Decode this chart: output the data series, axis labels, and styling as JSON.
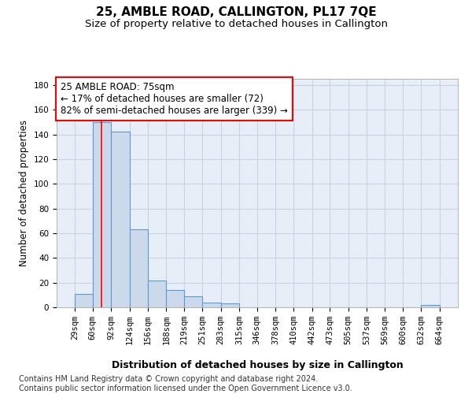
{
  "title": "25, AMBLE ROAD, CALLINGTON, PL17 7QE",
  "subtitle": "Size of property relative to detached houses in Callington",
  "xlabel": "Distribution of detached houses by size in Callington",
  "ylabel": "Number of detached properties",
  "bin_edges": [
    29,
    60,
    92,
    124,
    156,
    188,
    219,
    251,
    283,
    315,
    346,
    378,
    410,
    442,
    473,
    505,
    537,
    569,
    600,
    632,
    664
  ],
  "bar_heights": [
    11,
    150,
    142,
    63,
    22,
    14,
    9,
    4,
    3,
    0,
    0,
    0,
    0,
    0,
    0,
    0,
    0,
    0,
    0,
    2
  ],
  "bar_color": "#ccd9ea",
  "bar_edge_color": "#5b9bd5",
  "grid_color": "#c8d4e6",
  "background_color": "#e8eef7",
  "red_line_x": 75,
  "annotation_line1": "25 AMBLE ROAD: 75sqm",
  "annotation_line2": "← 17% of detached houses are smaller (72)",
  "annotation_line3": "82% of semi-detached houses are larger (339) →",
  "annotation_box_color": "white",
  "annotation_box_edgecolor": "red",
  "ylim": [
    0,
    185
  ],
  "yticks": [
    0,
    20,
    40,
    60,
    80,
    100,
    120,
    140,
    160,
    180
  ],
  "footer_text": "Contains HM Land Registry data © Crown copyright and database right 2024.\nContains public sector information licensed under the Open Government Licence v3.0.",
  "title_fontsize": 11,
  "subtitle_fontsize": 9.5,
  "xlabel_fontsize": 9,
  "ylabel_fontsize": 8.5,
  "tick_fontsize": 7.5,
  "annotation_fontsize": 8.5,
  "footer_fontsize": 7
}
